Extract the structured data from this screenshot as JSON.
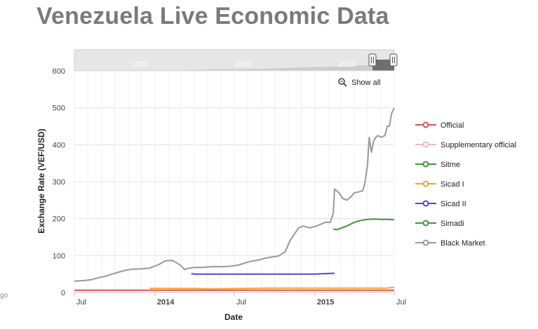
{
  "page": {
    "title": "Venezuela Live Economic Data",
    "side_fragment": "go"
  },
  "chart_data": {
    "type": "line",
    "ylabel": "Exchange Rate (VEF/USD)",
    "xlabel": "Date",
    "ylim": [
      0,
      600
    ],
    "yticks": [
      0,
      100,
      200,
      300,
      400,
      500,
      600
    ],
    "xlim": [
      "2013-07-01",
      "2015-07-01"
    ],
    "xticks": [
      {
        "date": "2013-07-01",
        "label": "Jul",
        "bold": false
      },
      {
        "date": "2014-01-01",
        "label": "2014",
        "bold": true
      },
      {
        "date": "2014-07-01",
        "label": "Jul",
        "bold": false
      },
      {
        "date": "2015-01-01",
        "label": "2015",
        "bold": true
      },
      {
        "date": "2015-07-01",
        "label": "Jul",
        "bold": false
      }
    ],
    "grid": true,
    "legend_position": "right",
    "show_all_label": "Show all",
    "navigator": {
      "years": [
        "1990",
        "2000",
        "2010"
      ]
    },
    "series": [
      {
        "name": "Official",
        "color": "#d9534f",
        "x": [
          "2013-07-01",
          "2015-07-01"
        ],
        "y": [
          6.3,
          6.3
        ]
      },
      {
        "name": "Supplementary official",
        "color": "#f4b6c8",
        "x": [],
        "y": []
      },
      {
        "name": "Sitme",
        "color": "#3a9a3a",
        "x": [],
        "y": []
      },
      {
        "name": "Sicad I",
        "color": "#f0a830",
        "x": [
          "2013-12-20",
          "2014-04-01",
          "2014-05-01",
          "2014-10-01",
          "2015-02-15",
          "2015-06-15",
          "2015-06-25",
          "2015-07-01"
        ],
        "y": [
          11.3,
          10.8,
          10.0,
          12.0,
          12.0,
          12.0,
          13.5,
          13.5
        ]
      },
      {
        "name": "Sicad II",
        "color": "#4a4ad0",
        "x": [
          "2014-03-25",
          "2014-04-01",
          "2014-09-01",
          "2015-01-01",
          "2015-02-10",
          "2015-02-15"
        ],
        "y": [
          51,
          49.8,
          49.9,
          50.0,
          52.0,
          52.0
        ]
      },
      {
        "name": "Simadi",
        "color": "#3a9a3a",
        "x": [
          "2015-02-12",
          "2015-02-20",
          "2015-03-01",
          "2015-03-15",
          "2015-04-01",
          "2015-04-15",
          "2015-05-01",
          "2015-05-15",
          "2015-06-01",
          "2015-06-15",
          "2015-07-01"
        ],
        "y": [
          172,
          170,
          174,
          180,
          190,
          195,
          198,
          199,
          198,
          198,
          197
        ]
      },
      {
        "name": "Black Market",
        "color": "#999999",
        "x": [
          "2013-07-01",
          "2013-07-20",
          "2013-08-10",
          "2013-08-25",
          "2013-09-10",
          "2013-09-25",
          "2013-10-10",
          "2013-10-25",
          "2013-11-10",
          "2013-12-01",
          "2013-12-20",
          "2014-01-10",
          "2014-01-25",
          "2014-02-10",
          "2014-02-20",
          "2014-03-01",
          "2014-03-10",
          "2014-03-15",
          "2014-04-01",
          "2014-04-20",
          "2014-05-10",
          "2014-06-01",
          "2014-06-20",
          "2014-07-10",
          "2014-07-25",
          "2014-08-10",
          "2014-08-25",
          "2014-09-10",
          "2014-09-25",
          "2014-10-10",
          "2014-10-25",
          "2014-11-05",
          "2014-11-15",
          "2014-11-25",
          "2014-12-05",
          "2014-12-20",
          "2015-01-05",
          "2015-01-15",
          "2015-01-25",
          "2015-02-05",
          "2015-02-12",
          "2015-02-15",
          "2015-02-25",
          "2015-03-05",
          "2015-03-15",
          "2015-03-25",
          "2015-04-01",
          "2015-04-10",
          "2015-04-20",
          "2015-04-25",
          "2015-05-01",
          "2015-05-05",
          "2015-05-10",
          "2015-05-15",
          "2015-05-20",
          "2015-05-25",
          "2015-06-01",
          "2015-06-10",
          "2015-06-15",
          "2015-06-20",
          "2015-06-25",
          "2015-07-01"
        ],
        "y": [
          31,
          32,
          35,
          40,
          44,
          50,
          55,
          60,
          63,
          64,
          66,
          76,
          86,
          87,
          80,
          73,
          62,
          65,
          68,
          68,
          70,
          70,
          71,
          74,
          80,
          85,
          88,
          93,
          96,
          99,
          110,
          140,
          158,
          175,
          180,
          175,
          180,
          185,
          190,
          190,
          215,
          280,
          270,
          255,
          250,
          260,
          270,
          272,
          275,
          295,
          345,
          420,
          380,
          410,
          420,
          425,
          420,
          425,
          450,
          450,
          485,
          500
        ]
      }
    ]
  }
}
